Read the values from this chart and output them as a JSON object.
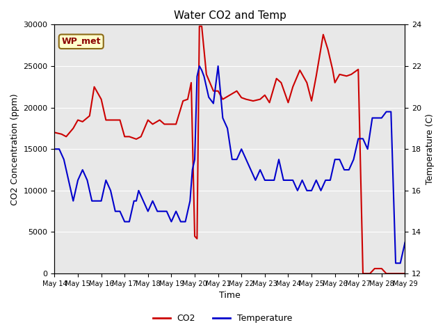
{
  "title": "Water CO2 and Temp",
  "xlabel": "Time",
  "ylabel_left": "CO2 Concentration (ppm)",
  "ylabel_right": "Temperature (C)",
  "annotation": "WP_met",
  "co2_color": "#cc0000",
  "temp_color": "#0000cc",
  "background_color": "#e8e8e8",
  "ylim_left": [
    0,
    30000
  ],
  "ylim_right": [
    12,
    24
  ],
  "x_ticks": [
    "May 14",
    "May 15",
    "May 16",
    "May 17",
    "May 18",
    "May 19",
    "May 20",
    "May 21",
    "May 22",
    "May 23",
    "May 24",
    "May 25",
    "May 26",
    "May 27",
    "May 28",
    "May 29"
  ],
  "co2_x": [
    0,
    0.3,
    0.5,
    0.8,
    1.0,
    1.2,
    1.5,
    1.7,
    2.0,
    2.2,
    2.5,
    2.8,
    3.0,
    3.2,
    3.5,
    3.7,
    4.0,
    4.2,
    4.5,
    4.7,
    5.0,
    5.2,
    5.5,
    5.7,
    5.85,
    6.0,
    6.1,
    6.2,
    6.3,
    6.5,
    6.8,
    7.0,
    7.2,
    7.5,
    7.8,
    8.0,
    8.2,
    8.5,
    8.8,
    9.0,
    9.2,
    9.5,
    9.7,
    10.0,
    10.2,
    10.5,
    10.8,
    11.0,
    11.2,
    11.5,
    11.7,
    11.9,
    12.0,
    12.2,
    12.5,
    12.7,
    13.0,
    13.2,
    13.5,
    13.7,
    13.85,
    13.9,
    14.0,
    14.2,
    14.5,
    14.7,
    15.0
  ],
  "co2_y": [
    17000,
    16800,
    16500,
    17500,
    18500,
    18300,
    19000,
    22500,
    21000,
    18500,
    18500,
    18500,
    16500,
    16500,
    16200,
    16500,
    18500,
    18000,
    18500,
    18000,
    18000,
    18000,
    20800,
    21000,
    23000,
    4500,
    4200,
    29800,
    29800,
    24000,
    22000,
    22000,
    21000,
    21500,
    22000,
    21200,
    21000,
    20800,
    21000,
    21500,
    20600,
    23500,
    23000,
    20600,
    22500,
    24500,
    23000,
    20800,
    23800,
    28800,
    27000,
    24600,
    23000,
    24000,
    23800,
    24000,
    24600,
    0,
    0,
    600,
    600,
    600,
    600,
    0,
    0,
    0,
    0
  ],
  "temp_x": [
    0,
    0.2,
    0.4,
    0.6,
    0.8,
    1.0,
    1.2,
    1.4,
    1.5,
    1.6,
    1.8,
    2.0,
    2.2,
    2.4,
    2.6,
    2.8,
    3.0,
    3.2,
    3.4,
    3.5,
    3.6,
    3.8,
    4.0,
    4.2,
    4.4,
    4.6,
    4.8,
    5.0,
    5.2,
    5.4,
    5.6,
    5.8,
    5.9,
    6.0,
    6.1,
    6.2,
    6.3,
    6.4,
    6.5,
    6.6,
    6.8,
    7.0,
    7.2,
    7.4,
    7.6,
    7.8,
    8.0,
    8.2,
    8.4,
    8.6,
    8.8,
    9.0,
    9.2,
    9.4,
    9.6,
    9.8,
    10.0,
    10.2,
    10.4,
    10.6,
    10.8,
    11.0,
    11.2,
    11.4,
    11.6,
    11.8,
    12.0,
    12.2,
    12.4,
    12.6,
    12.8,
    13.0,
    13.2,
    13.4,
    13.6,
    13.8,
    14.0,
    14.2,
    14.4,
    14.6,
    14.8,
    15.0
  ],
  "temp_y": [
    18.0,
    18.0,
    17.5,
    16.5,
    15.5,
    16.5,
    17.0,
    16.5,
    16.0,
    15.5,
    15.5,
    15.5,
    16.5,
    16.0,
    15.0,
    15.0,
    14.5,
    14.5,
    15.5,
    15.5,
    16.0,
    15.5,
    15.0,
    15.5,
    15.0,
    15.0,
    15.0,
    14.5,
    15.0,
    14.5,
    14.5,
    15.5,
    17.0,
    17.5,
    21.5,
    22.0,
    21.8,
    21.5,
    21.0,
    20.5,
    20.2,
    22.0,
    19.5,
    19.0,
    17.5,
    17.5,
    18.0,
    17.5,
    17.0,
    16.5,
    17.0,
    16.5,
    16.5,
    16.5,
    17.5,
    16.5,
    16.5,
    16.5,
    16.0,
    16.5,
    16.0,
    16.0,
    16.5,
    16.0,
    16.5,
    16.5,
    17.5,
    17.5,
    17.0,
    17.0,
    17.5,
    18.5,
    18.5,
    18.0,
    19.5,
    19.5,
    19.5,
    19.8,
    19.8,
    12.5,
    12.5,
    13.5
  ]
}
